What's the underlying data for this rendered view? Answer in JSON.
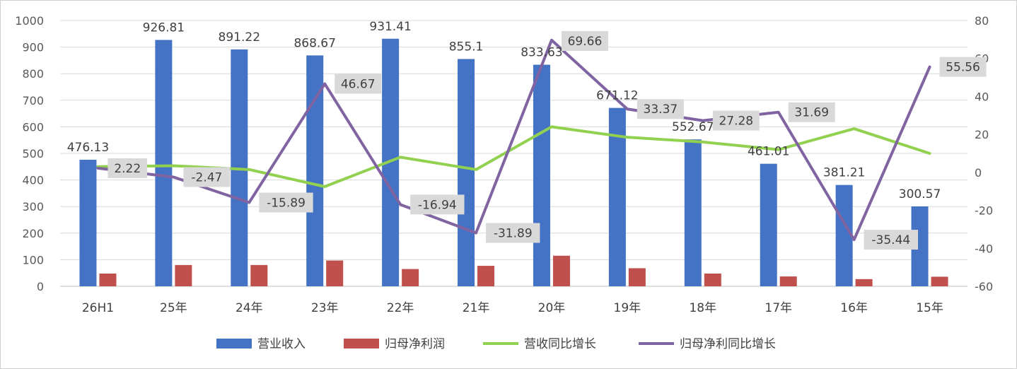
{
  "chart_data": {
    "type": "bar",
    "categories": [
      "26H1",
      "25年",
      "24年",
      "23年",
      "22年",
      "21年",
      "20年",
      "19年",
      "18年",
      "17年",
      "16年",
      "15年"
    ],
    "series": [
      {
        "name": "营业收入",
        "chart": "bar",
        "axis": "left",
        "color": "#4472C4",
        "values": [
          476.13,
          926.81,
          891.22,
          868.67,
          931.41,
          855.1,
          833.63,
          671.12,
          552.67,
          461.01,
          381.21,
          300.57
        ],
        "labels": [
          "476.13",
          "926.81",
          "891.22",
          "868.67",
          "931.41",
          "855.1",
          "833.63",
          "671.12",
          "552.67",
          "461.01",
          "381.21",
          "300.57"
        ]
      },
      {
        "name": "归母净利润",
        "chart": "bar",
        "axis": "left",
        "color": "#C0504D",
        "values": [
          48,
          80,
          80,
          97,
          65,
          77,
          115,
          68,
          48,
          37,
          27,
          36
        ]
      },
      {
        "name": "营收同比增长",
        "chart": "line",
        "axis": "right",
        "color": "#92D050",
        "values": [
          3,
          3.5,
          1.5,
          -7.5,
          8,
          1.5,
          24,
          18.5,
          16,
          12,
          23,
          10
        ]
      },
      {
        "name": "归母净利同比增长",
        "chart": "line",
        "axis": "right",
        "color": "#8064A2",
        "values": [
          2.22,
          -2.47,
          -15.89,
          46.67,
          -16.94,
          -31.89,
          69.66,
          33.37,
          27.28,
          31.69,
          -35.44,
          55.56
        ],
        "labels": [
          "2.22",
          "-2.47",
          "-15.89",
          "46.67",
          "-16.94",
          "-31.89",
          "69.66",
          "33.37",
          "27.28",
          "31.69",
          "-35.44",
          "55.56"
        ]
      }
    ],
    "left_axis": {
      "ylim": [
        0,
        1000
      ],
      "ticks": [
        "0",
        "100",
        "200",
        "300",
        "400",
        "500",
        "600",
        "700",
        "800",
        "900",
        "1000"
      ]
    },
    "right_axis": {
      "ylim": [
        -60,
        80
      ],
      "ticks": [
        "-60",
        "-40",
        "-20",
        "0",
        "20",
        "40",
        "60",
        "80"
      ]
    },
    "grid": true,
    "legend_position": "bottom",
    "title": ""
  }
}
